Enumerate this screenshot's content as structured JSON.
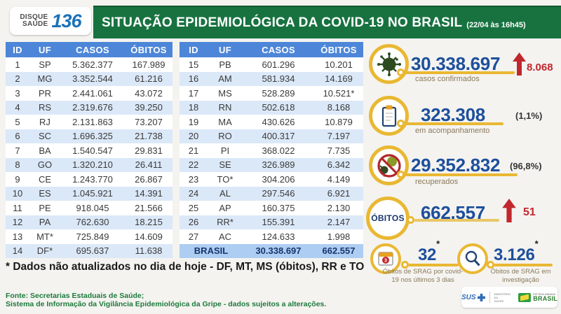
{
  "header": {
    "logo_line1": "DISQUE",
    "logo_line2": "SAÚDE",
    "logo_number": "136",
    "title": "SITUAÇÃO EPIDEMIOLÓGICA DA COVID-19 NO BRASIL",
    "timestamp": "(22/04 às 16h45)"
  },
  "table": {
    "headers": [
      "ID",
      "UF",
      "CASOS",
      "ÓBITOS"
    ],
    "left_rows": [
      [
        "1",
        "SP",
        "5.362.377",
        "167.989"
      ],
      [
        "2",
        "MG",
        "3.352.544",
        "61.216"
      ],
      [
        "3",
        "PR",
        "2.441.061",
        "43.072"
      ],
      [
        "4",
        "RS",
        "2.319.676",
        "39.250"
      ],
      [
        "5",
        "RJ",
        "2.131.863",
        "73.207"
      ],
      [
        "6",
        "SC",
        "1.696.325",
        "21.738"
      ],
      [
        "7",
        "BA",
        "1.540.547",
        "29.831"
      ],
      [
        "8",
        "GO",
        "1.320.210",
        "26.411"
      ],
      [
        "9",
        "CE",
        "1.243.770",
        "26.867"
      ],
      [
        "10",
        "ES",
        "1.045.921",
        "14.391"
      ],
      [
        "11",
        "PE",
        "918.045",
        "21.566"
      ],
      [
        "12",
        "PA",
        "762.630",
        "18.215"
      ],
      [
        "13",
        "MT*",
        "725.849",
        "14.609"
      ],
      [
        "14",
        "DF*",
        "695.637",
        "11.638"
      ]
    ],
    "right_rows": [
      [
        "15",
        "PB",
        "601.296",
        "10.201"
      ],
      [
        "16",
        "AM",
        "581.934",
        "14.169"
      ],
      [
        "17",
        "MS",
        "528.289",
        "10.521*"
      ],
      [
        "18",
        "RN",
        "502.618",
        "8.168"
      ],
      [
        "19",
        "MA",
        "430.626",
        "10.879"
      ],
      [
        "20",
        "RO",
        "400.317",
        "7.197"
      ],
      [
        "21",
        "PI",
        "368.022",
        "7.735"
      ],
      [
        "22",
        "SE",
        "326.989",
        "6.342"
      ],
      [
        "23",
        "TO*",
        "304.206",
        "4.149"
      ],
      [
        "24",
        "AL",
        "297.546",
        "6.921"
      ],
      [
        "25",
        "AP",
        "160.375",
        "2.130"
      ],
      [
        "26",
        "RR*",
        "155.391",
        "2.147"
      ],
      [
        "27",
        "AC",
        "124.633",
        "1.998"
      ]
    ],
    "total": {
      "label": "BRASIL",
      "casos": "30.338.697",
      "obitos": "662.557"
    }
  },
  "stats": {
    "confirmed": {
      "value": "30.338.697",
      "label": "casos confirmados",
      "delta": "8.068"
    },
    "monitoring": {
      "value": "323.308",
      "percent": "(1,1%)",
      "label": "em acompanhamento"
    },
    "recovered": {
      "value": "29.352.832",
      "percent": "(96,8%)",
      "label": "recuperados"
    },
    "deaths": {
      "badge": "ÓBITOS",
      "value": "662.557",
      "delta": "51"
    },
    "srag_deaths": {
      "value": "32",
      "asterisk": "*",
      "calendar_badge": "3",
      "label": "Óbitos de SRAG por covid-19 nos últimos 3 dias"
    },
    "srag_investigation": {
      "value": "3.126",
      "asterisk": "*",
      "label": "Óbitos de SRAG em investigação"
    }
  },
  "footnote": "* Dados não atualizados no dia de hoje - DF, MT, MS (óbitos), RR e TO",
  "source_line1": "Fonte: Secretarias Estaduais de Saúde;",
  "source_line2": "Sistema de Informação da Vigilância Epidemiológica da Gripe - dados sujeitos a alterações.",
  "logos": {
    "sus": "SUS",
    "ministry_line1": "MINISTÉRIO DA",
    "ministry_line2": "SAÚDE",
    "brasil_small": "PÁTRIA AMADA",
    "brasil": "BRASIL"
  },
  "colors": {
    "header_green": "#177240",
    "table_header_blue": "#4d86d8",
    "row_alt_blue": "#dbe8f8",
    "total_row_blue": "#aecdf2",
    "number_blue": "#1d4f9c",
    "alert_red": "#c1272d",
    "accent_gold": "#e9b833",
    "label_tan": "#8a795a",
    "source_green": "#1e7a3c"
  }
}
